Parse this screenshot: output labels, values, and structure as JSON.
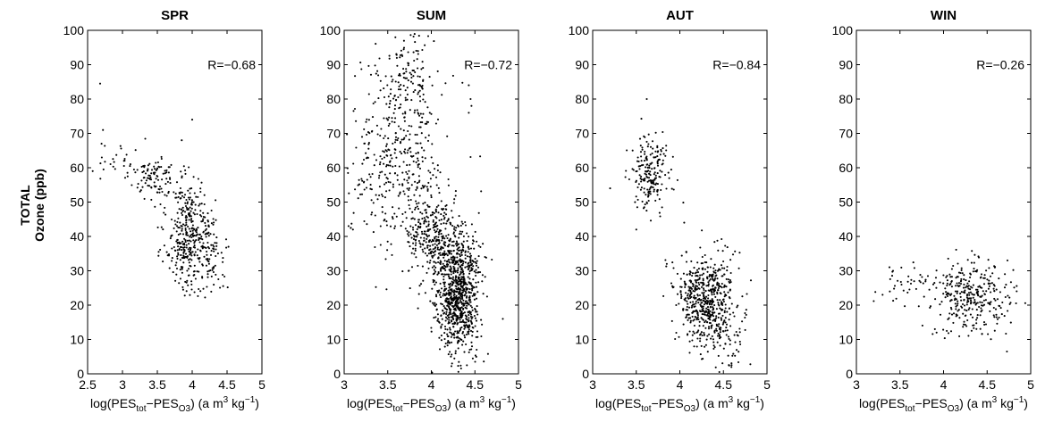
{
  "figure": {
    "y_label_line1": "TOTAL",
    "y_label_line2": "Ozone (ppb)"
  },
  "chart_data": [
    {
      "type": "scatter",
      "title": "SPR",
      "xlabel": "log(PES_tot−PES_O3) (a m^3 kg^−1)",
      "ylabel": "TOTAL Ozone (ppb)",
      "xlim": [
        2.5,
        5
      ],
      "ylim": [
        0,
        100
      ],
      "xticks": [
        2.5,
        3,
        3.5,
        4,
        4.5,
        5
      ],
      "xtick_labels": [
        "2.5",
        "3",
        "3.5",
        "4",
        "4.5",
        "5"
      ],
      "yticks": [
        0,
        10,
        20,
        30,
        40,
        50,
        60,
        70,
        80,
        90,
        100
      ],
      "annotation": "R=−0.68",
      "grid": false,
      "clusters": [
        {
          "x_center": 3.95,
          "x_spread": 0.16,
          "y_center": 40,
          "y_spread": 8,
          "n": 380
        },
        {
          "x_center": 3.45,
          "x_spread": 0.17,
          "y_center": 57,
          "y_spread": 3.5,
          "n": 90
        },
        {
          "x_center": 4.3,
          "x_spread": 0.12,
          "y_center": 34,
          "y_spread": 5,
          "n": 60
        },
        {
          "x_center": 2.95,
          "x_spread": 0.18,
          "y_center": 61,
          "y_spread": 4,
          "n": 28
        }
      ],
      "outliers": [
        [
          2.68,
          84.5
        ],
        [
          2.72,
          71
        ],
        [
          2.7,
          67
        ],
        [
          4.0,
          74
        ],
        [
          3.85,
          68
        ]
      ]
    },
    {
      "type": "scatter",
      "title": "SUM",
      "xlabel": "log(PES_tot−PES_O3) (a m^3 kg^−1)",
      "ylabel": "TOTAL Ozone (ppb)",
      "xlim": [
        3,
        5
      ],
      "ylim": [
        0,
        100
      ],
      "xticks": [
        3,
        3.5,
        4,
        4.5,
        5
      ],
      "xtick_labels": [
        "3",
        "3.5",
        "4",
        "4.5",
        "5"
      ],
      "yticks": [
        0,
        10,
        20,
        30,
        40,
        50,
        60,
        70,
        80,
        90,
        100
      ],
      "annotation": "R=−0.72",
      "grid": false,
      "clusters": [
        {
          "x_center": 4.3,
          "x_spread": 0.12,
          "y_center": 24,
          "y_spread": 9,
          "n": 900
        },
        {
          "x_center": 3.6,
          "x_spread": 0.25,
          "y_center": 63,
          "y_spread": 14,
          "n": 420
        },
        {
          "x_center": 4.0,
          "x_spread": 0.14,
          "y_center": 40,
          "y_spread": 7,
          "n": 260
        },
        {
          "x_center": 3.75,
          "x_spread": 0.15,
          "y_center": 88,
          "y_spread": 7,
          "n": 90
        }
      ],
      "outliers": [
        [
          4.43,
          84
        ],
        [
          4.45,
          80
        ],
        [
          4.43,
          76
        ],
        [
          4.46,
          78
        ],
        [
          3.05,
          43
        ],
        [
          3.1,
          42
        ],
        [
          4.82,
          16
        ]
      ]
    },
    {
      "type": "scatter",
      "title": "AUT",
      "xlabel": "log(PES_tot−PES_O3) (a m^3 kg^−1)",
      "ylabel": "TOTAL Ozone (ppb)",
      "xlim": [
        3,
        5
      ],
      "ylim": [
        0,
        100
      ],
      "xticks": [
        3,
        3.5,
        4,
        4.5,
        5
      ],
      "xtick_labels": [
        "3",
        "3.5",
        "4",
        "4.5",
        "5"
      ],
      "yticks": [
        0,
        10,
        20,
        30,
        40,
        50,
        60,
        70,
        80,
        90,
        100
      ],
      "annotation": "R=−0.84",
      "grid": false,
      "clusters": [
        {
          "x_center": 4.3,
          "x_spread": 0.17,
          "y_center": 22,
          "y_spread": 6.5,
          "n": 560
        },
        {
          "x_center": 3.68,
          "x_spread": 0.12,
          "y_center": 58,
          "y_spread": 6,
          "n": 200
        },
        {
          "x_center": 4.55,
          "x_spread": 0.12,
          "y_center": 8,
          "y_spread": 5,
          "n": 50
        }
      ],
      "outliers": [
        [
          3.62,
          80
        ],
        [
          3.2,
          54
        ],
        [
          3.5,
          42
        ],
        [
          4.05,
          44
        ],
        [
          3.85,
          32
        ]
      ]
    },
    {
      "type": "scatter",
      "title": "WIN",
      "xlabel": "log(PES_tot−PES_O3) (a m^3 kg^−1)",
      "ylabel": "TOTAL Ozone (ppb)",
      "xlim": [
        3,
        5
      ],
      "ylim": [
        0,
        100
      ],
      "xticks": [
        3,
        3.5,
        4,
        4.5,
        5
      ],
      "xtick_labels": [
        "3",
        "3.5",
        "4",
        "4.5",
        "5"
      ],
      "yticks": [
        0,
        10,
        20,
        30,
        40,
        50,
        60,
        70,
        80,
        90,
        100
      ],
      "annotation": "R=−0.26",
      "grid": false,
      "clusters": [
        {
          "x_center": 4.35,
          "x_spread": 0.22,
          "y_center": 22,
          "y_spread": 5,
          "n": 320
        },
        {
          "x_center": 3.6,
          "x_spread": 0.22,
          "y_center": 26,
          "y_spread": 3.5,
          "n": 40
        }
      ],
      "outliers": [
        [
          3.38,
          31
        ],
        [
          3.42,
          30
        ],
        [
          3.3,
          23
        ],
        [
          3.9,
          13
        ],
        [
          3.92,
          12
        ]
      ]
    }
  ]
}
